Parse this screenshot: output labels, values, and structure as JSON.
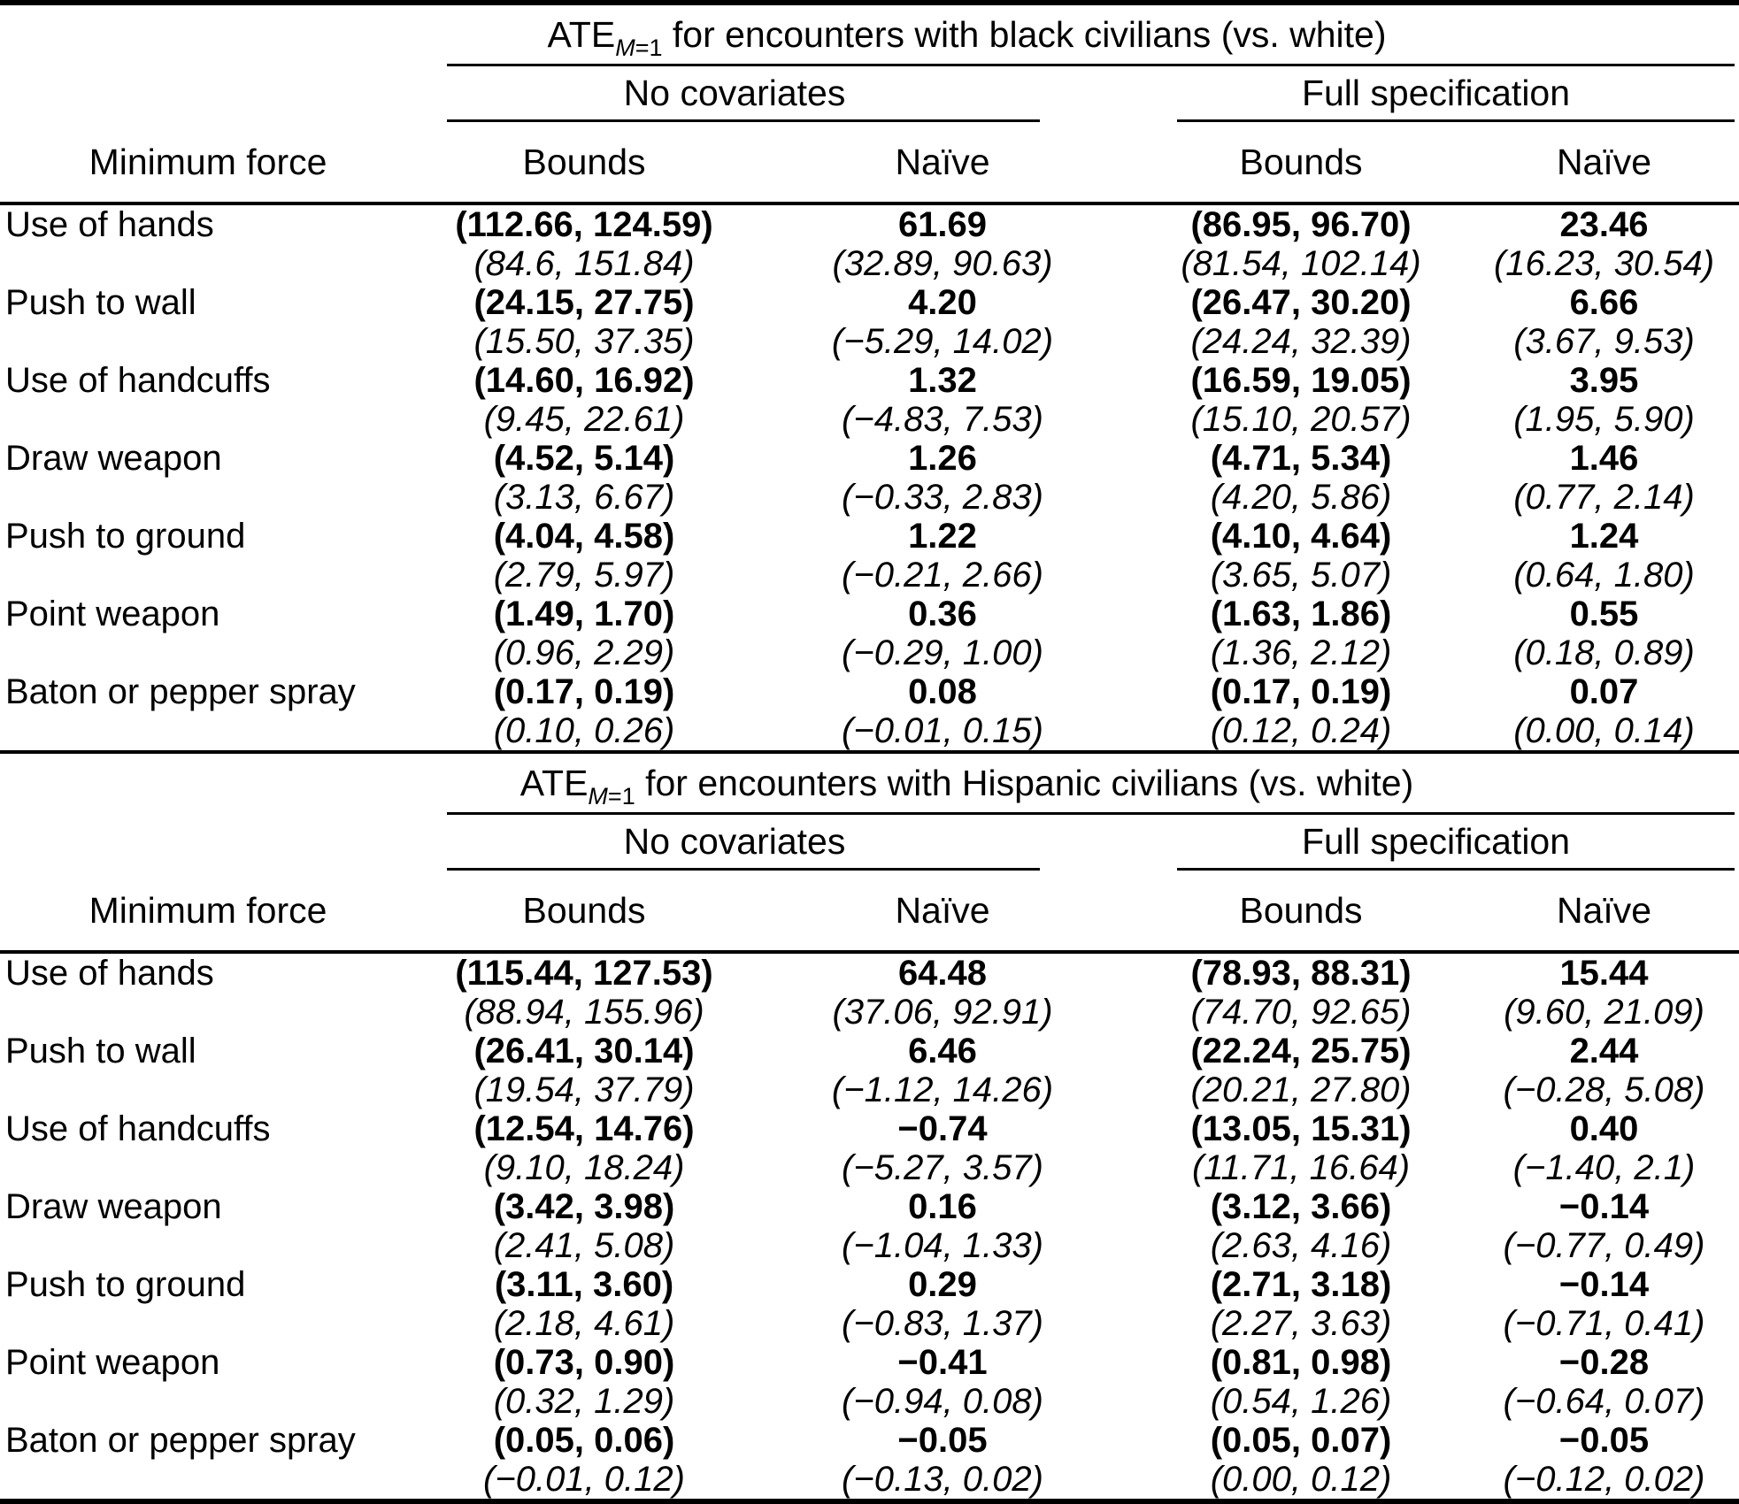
{
  "panels": [
    {
      "title": {
        "prefix": "ATE",
        "sub_var": "M",
        "sub_eq": "=1",
        "rest": " for encounters with black civilians (vs. white)"
      },
      "groups": [
        "No covariates",
        "Full specification"
      ],
      "col_headers": [
        "Minimum force",
        "Bounds",
        "Naïve",
        "Bounds",
        "Naïve"
      ],
      "rows": [
        {
          "label": "Use of hands",
          "cells": [
            {
              "est": "(112.66, 124.59)",
              "ci": "(84.6, 151.84)"
            },
            {
              "est": "61.69",
              "ci": "(32.89, 90.63)"
            },
            {
              "est": "(86.95, 96.70)",
              "ci": "(81.54, 102.14)"
            },
            {
              "est": "23.46",
              "ci": "(16.23, 30.54)"
            }
          ]
        },
        {
          "label": "Push to wall",
          "cells": [
            {
              "est": "(24.15, 27.75)",
              "ci": "(15.50, 37.35)"
            },
            {
              "est": "4.20",
              "ci": "(−5.29, 14.02)"
            },
            {
              "est": "(26.47, 30.20)",
              "ci": "(24.24, 32.39)"
            },
            {
              "est": "6.66",
              "ci": "(3.67, 9.53)"
            }
          ]
        },
        {
          "label": "Use of handcuffs",
          "cells": [
            {
              "est": "(14.60, 16.92)",
              "ci": "(9.45, 22.61)"
            },
            {
              "est": "1.32",
              "ci": "(−4.83, 7.53)"
            },
            {
              "est": "(16.59, 19.05)",
              "ci": "(15.10, 20.57)"
            },
            {
              "est": "3.95",
              "ci": "(1.95, 5.90)"
            }
          ]
        },
        {
          "label": "Draw weapon",
          "cells": [
            {
              "est": "(4.52, 5.14)",
              "ci": "(3.13, 6.67)"
            },
            {
              "est": "1.26",
              "ci": "(−0.33, 2.83)"
            },
            {
              "est": "(4.71, 5.34)",
              "ci": "(4.20, 5.86)"
            },
            {
              "est": "1.46",
              "ci": "(0.77, 2.14)"
            }
          ]
        },
        {
          "label": "Push to ground",
          "cells": [
            {
              "est": "(4.04, 4.58)",
              "ci": "(2.79, 5.97)"
            },
            {
              "est": "1.22",
              "ci": "(−0.21, 2.66)"
            },
            {
              "est": "(4.10, 4.64)",
              "ci": "(3.65, 5.07)"
            },
            {
              "est": "1.24",
              "ci": "(0.64, 1.80)"
            }
          ]
        },
        {
          "label": "Point weapon",
          "cells": [
            {
              "est": "(1.49, 1.70)",
              "ci": "(0.96, 2.29)"
            },
            {
              "est": "0.36",
              "ci": "(−0.29, 1.00)"
            },
            {
              "est": "(1.63, 1.86)",
              "ci": "(1.36, 2.12)"
            },
            {
              "est": "0.55",
              "ci": "(0.18, 0.89)"
            }
          ]
        },
        {
          "label": "Baton or pepper spray",
          "cells": [
            {
              "est": "(0.17, 0.19)",
              "ci": "(0.10, 0.26)"
            },
            {
              "est": "0.08",
              "ci": "(−0.01, 0.15)"
            },
            {
              "est": "(0.17, 0.19)",
              "ci": "(0.12, 0.24)"
            },
            {
              "est": "0.07",
              "ci": "(0.00, 0.14)"
            }
          ]
        }
      ]
    },
    {
      "title": {
        "prefix": "ATE",
        "sub_var": "M",
        "sub_eq": "=1",
        "rest": " for encounters with Hispanic civilians (vs. white)"
      },
      "groups": [
        "No covariates",
        "Full specification"
      ],
      "col_headers": [
        "Minimum force",
        "Bounds",
        "Naïve",
        "Bounds",
        "Naïve"
      ],
      "rows": [
        {
          "label": "Use of hands",
          "cells": [
            {
              "est": "(115.44, 127.53)",
              "ci": "(88.94, 155.96)"
            },
            {
              "est": "64.48",
              "ci": "(37.06, 92.91)"
            },
            {
              "est": "(78.93, 88.31)",
              "ci": "(74.70, 92.65)"
            },
            {
              "est": "15.44",
              "ci": "(9.60, 21.09)"
            }
          ]
        },
        {
          "label": "Push to wall",
          "cells": [
            {
              "est": "(26.41, 30.14)",
              "ci": "(19.54, 37.79)"
            },
            {
              "est": "6.46",
              "ci": "(−1.12, 14.26)"
            },
            {
              "est": "(22.24, 25.75)",
              "ci": "(20.21, 27.80)"
            },
            {
              "est": "2.44",
              "ci": "(−0.28, 5.08)"
            }
          ]
        },
        {
          "label": "Use of handcuffs",
          "cells": [
            {
              "est": "(12.54, 14.76)",
              "ci": "(9.10, 18.24)"
            },
            {
              "est": "−0.74",
              "ci": "(−5.27, 3.57)"
            },
            {
              "est": "(13.05, 15.31)",
              "ci": "(11.71, 16.64)"
            },
            {
              "est": "0.40",
              "ci": "(−1.40, 2.1)"
            }
          ]
        },
        {
          "label": "Draw weapon",
          "cells": [
            {
              "est": "(3.42, 3.98)",
              "ci": "(2.41, 5.08)"
            },
            {
              "est": "0.16",
              "ci": "(−1.04, 1.33)"
            },
            {
              "est": "(3.12, 3.66)",
              "ci": "(2.63, 4.16)"
            },
            {
              "est": "−0.14",
              "ci": "(−0.77, 0.49)"
            }
          ]
        },
        {
          "label": "Push to ground",
          "cells": [
            {
              "est": "(3.11, 3.60)",
              "ci": "(2.18, 4.61)"
            },
            {
              "est": "0.29",
              "ci": "(−0.83, 1.37)"
            },
            {
              "est": "(2.71, 3.18)",
              "ci": "(2.27, 3.63)"
            },
            {
              "est": "−0.14",
              "ci": "(−0.71, 0.41)"
            }
          ]
        },
        {
          "label": "Point weapon",
          "cells": [
            {
              "est": "(0.73, 0.90)",
              "ci": "(0.32, 1.29)"
            },
            {
              "est": "−0.41",
              "ci": "(−0.94, 0.08)"
            },
            {
              "est": "(0.81, 0.98)",
              "ci": "(0.54, 1.26)"
            },
            {
              "est": "−0.28",
              "ci": "(−0.64, 0.07)"
            }
          ]
        },
        {
          "label": "Baton or pepper spray",
          "cells": [
            {
              "est": "(0.05, 0.06)",
              "ci": "(−0.01, 0.12)"
            },
            {
              "est": "−0.05",
              "ci": "(−0.13, 0.02)"
            },
            {
              "est": "(0.05, 0.07)",
              "ci": "(0.00, 0.12)"
            },
            {
              "est": "−0.05",
              "ci": "(−0.12, 0.02)"
            }
          ]
        }
      ]
    }
  ]
}
